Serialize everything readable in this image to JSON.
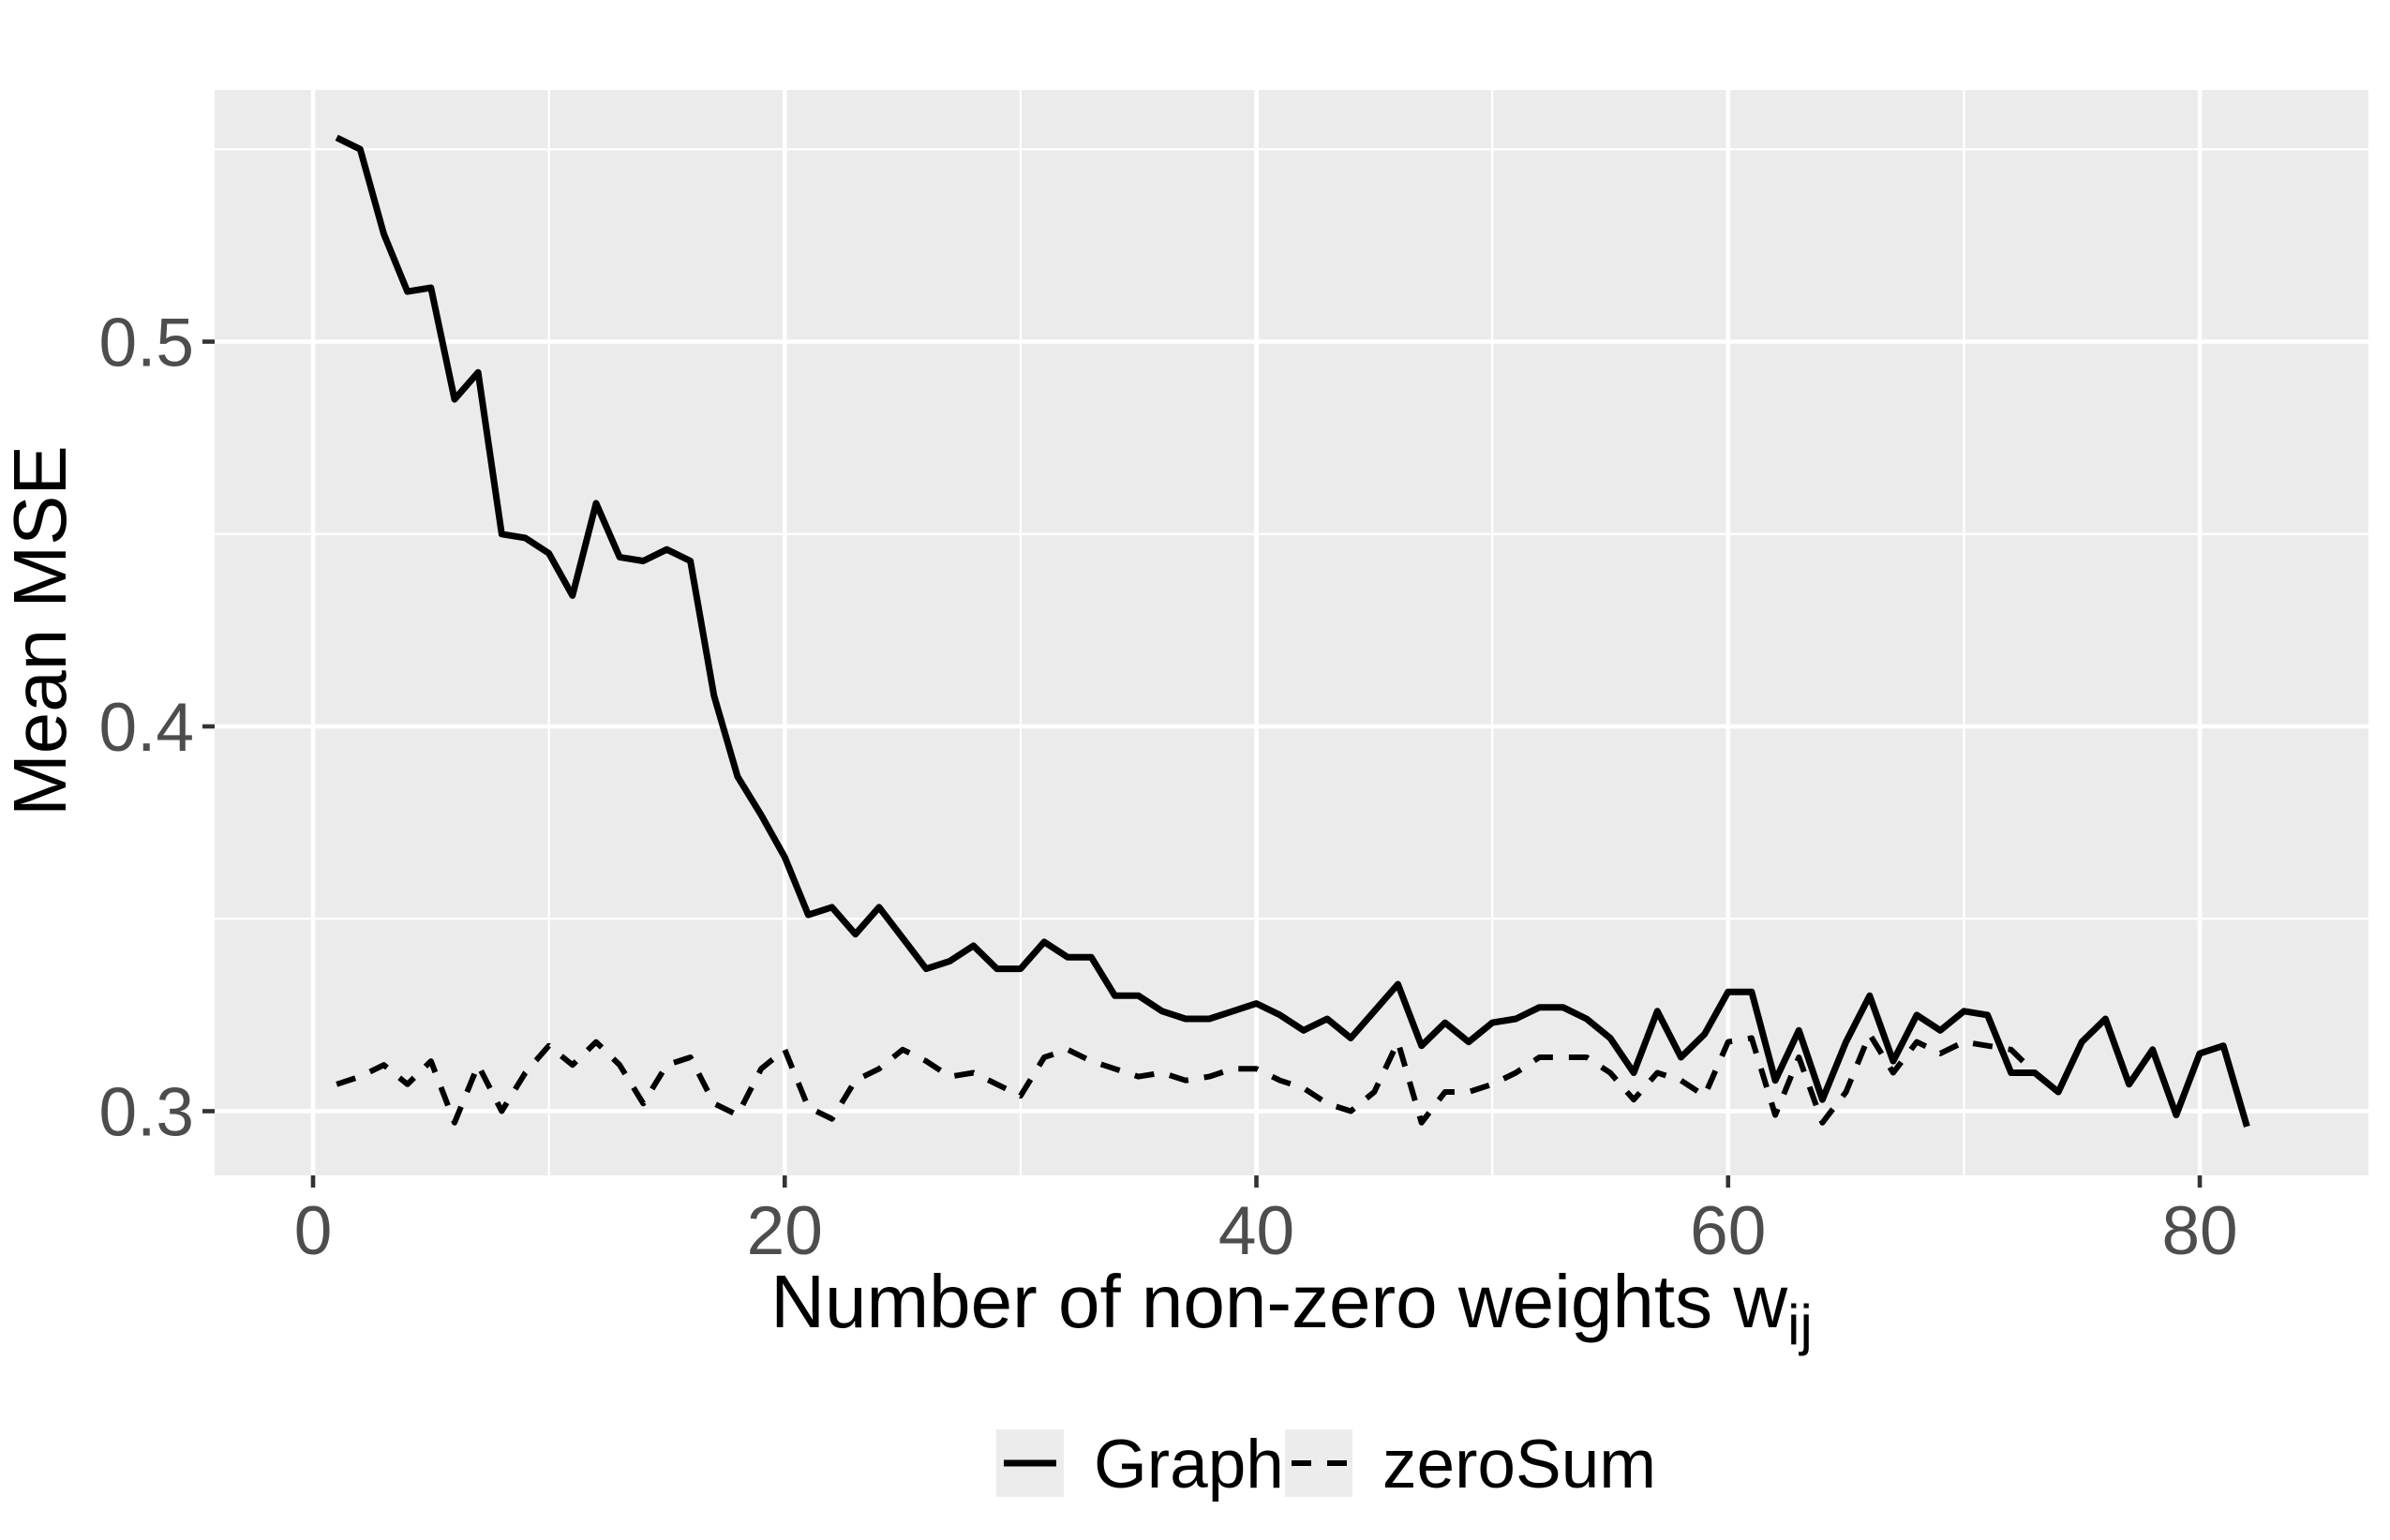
{
  "colors": {
    "background": "#FFFFFF",
    "panel_background": "#EBEBEB",
    "gridline": "#FFFFFF",
    "tick_label": "#4D4D4D",
    "series_line": "#000000"
  },
  "chart_data": {
    "type": "line",
    "title": "",
    "xlabel_main": "Number of non-zero weights w",
    "xlabel_sub": "ij",
    "ylabel": "Mean MSE",
    "x_ticks": [
      0,
      20,
      40,
      60,
      80
    ],
    "x_minor_ticks": [
      10,
      30,
      50,
      70
    ],
    "y_ticks": [
      0.3,
      0.4,
      0.5
    ],
    "y_tick_labels": [
      "0.3",
      "0.4",
      "0.5"
    ],
    "y_minor_ticks": [
      0.35,
      0.45,
      0.55
    ],
    "xlim": [
      -4.2,
      87.2
    ],
    "ylim": [
      0.283,
      0.565
    ],
    "grid": "on",
    "legend_position": "bottom",
    "x_start": 1,
    "x_step": 1,
    "series": [
      {
        "name": "Graph",
        "line_style": "solid",
        "values": [
          0.553,
          0.55,
          0.528,
          0.513,
          0.514,
          0.485,
          0.492,
          0.45,
          0.449,
          0.445,
          0.434,
          0.458,
          0.444,
          0.443,
          0.446,
          0.443,
          0.408,
          0.387,
          0.377,
          0.366,
          0.351,
          0.353,
          0.346,
          0.353,
          0.345,
          0.337,
          0.339,
          0.343,
          0.337,
          0.337,
          0.344,
          0.34,
          0.34,
          0.33,
          0.33,
          0.326,
          0.324,
          0.324,
          0.326,
          0.328,
          0.325,
          0.321,
          0.324,
          0.319,
          0.326,
          0.333,
          0.317,
          0.323,
          0.318,
          0.323,
          0.324,
          0.327,
          0.327,
          0.324,
          0.319,
          0.31,
          0.326,
          0.314,
          0.32,
          0.331,
          0.331,
          0.308,
          0.321,
          0.303,
          0.318,
          0.33,
          0.313,
          0.325,
          0.321,
          0.326,
          0.325,
          0.31,
          0.31,
          0.305,
          0.318,
          0.324,
          0.307,
          0.316,
          0.299,
          0.315,
          0.317,
          0.296
        ]
      },
      {
        "name": "zeroSum",
        "line_style": "dashed",
        "values": [
          0.307,
          0.309,
          0.312,
          0.307,
          0.313,
          0.297,
          0.312,
          0.3,
          0.31,
          0.317,
          0.312,
          0.318,
          0.312,
          0.302,
          0.312,
          0.314,
          0.302,
          0.299,
          0.311,
          0.316,
          0.301,
          0.298,
          0.308,
          0.311,
          0.316,
          0.313,
          0.309,
          0.31,
          0.307,
          0.304,
          0.314,
          0.316,
          0.313,
          0.311,
          0.309,
          0.31,
          0.308,
          0.309,
          0.311,
          0.311,
          0.308,
          0.306,
          0.302,
          0.3,
          0.305,
          0.318,
          0.297,
          0.305,
          0.305,
          0.307,
          0.31,
          0.314,
          0.314,
          0.314,
          0.31,
          0.303,
          0.31,
          0.308,
          0.304,
          0.318,
          0.319,
          0.299,
          0.314,
          0.297,
          0.305,
          0.32,
          0.31,
          0.318,
          0.315,
          0.318,
          0.317,
          0.316,
          0.31
        ]
      }
    ],
    "legend": [
      {
        "label": "Graph"
      },
      {
        "label": "zeroSum"
      }
    ]
  }
}
